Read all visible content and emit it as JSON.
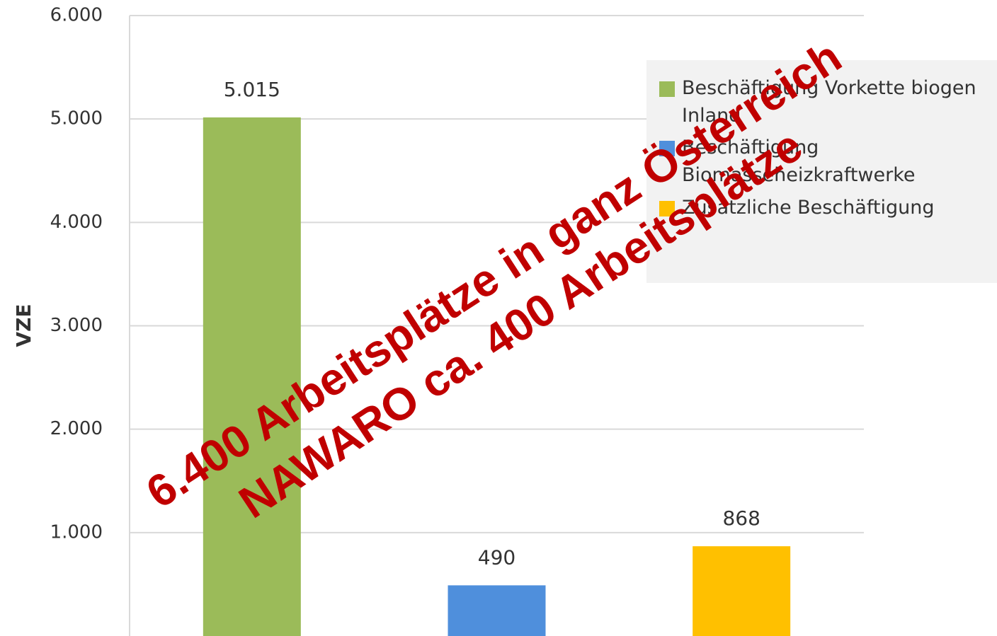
{
  "chart_data": {
    "type": "bar",
    "y_label": "VZE",
    "series": [
      {
        "name": "Beschäftigung Vorkette biogen Inland",
        "color": "#9bbb59",
        "values": [
          5015
        ],
        "value_labels": [
          "5.015"
        ]
      },
      {
        "name": "Beschäftigung Biomasseheizkraftwerke",
        "color": "#4f8fdc",
        "values": [
          490
        ],
        "value_labels": [
          "490"
        ]
      },
      {
        "name": "Zusätzliche Beschäftigung",
        "color": "#ffc000",
        "values": [
          868
        ],
        "value_labels": [
          "868"
        ]
      }
    ],
    "ylim": [
      0,
      6000
    ],
    "yticks": [
      {
        "value": 1000,
        "label": "1.000"
      },
      {
        "value": 2000,
        "label": "2.000"
      },
      {
        "value": 3000,
        "label": "3.000"
      },
      {
        "value": 4000,
        "label": "4.000"
      },
      {
        "value": 5000,
        "label": "5.000"
      },
      {
        "value": 6000,
        "label": "6.000"
      }
    ],
    "grid": true,
    "annotations": [
      "6.400 Arbeitsplätze in ganz Österreich",
      "NAWARO ca. 400 Arbeitsplätze"
    ]
  }
}
